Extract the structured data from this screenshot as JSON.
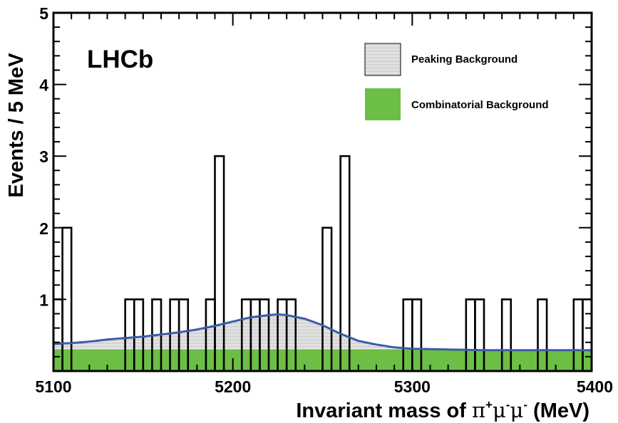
{
  "chart_data": {
    "type": "histogram",
    "brand": "LHCb",
    "xlabel_parts": [
      "Invariant mass of ",
      "π",
      "+",
      "μ",
      "-",
      "μ",
      "-",
      " (MeV)"
    ],
    "ylabel": "Events / 5 MeV",
    "xlim": [
      5100,
      5400
    ],
    "ylim": [
      0,
      5
    ],
    "x_ticks": [
      "5100",
      "5200",
      "5300",
      "5400"
    ],
    "x_tick_values": [
      5100,
      5200,
      5300,
      5400
    ],
    "y_ticks": [
      "1",
      "2",
      "3",
      "4",
      "5"
    ],
    "y_tick_values": [
      1,
      2,
      3,
      4,
      5
    ],
    "bin_width": 5,
    "data_histogram": {
      "bin_edges_start": [
        5100,
        5105,
        5140,
        5145,
        5150,
        5155,
        5160,
        5165,
        5170,
        5180,
        5185,
        5190,
        5200,
        5205,
        5210,
        5215,
        5220,
        5225,
        5230,
        5235,
        5250,
        5255,
        5260,
        5265,
        5295,
        5300,
        5305,
        5330,
        5335,
        5345,
        5350,
        5365,
        5370,
        5390,
        5395
      ],
      "counts": [
        1,
        2,
        1,
        1,
        0,
        1,
        0,
        1,
        1,
        0,
        1,
        3,
        0,
        1,
        1,
        1,
        0,
        1,
        1,
        0,
        2,
        0,
        3,
        0,
        1,
        1,
        0,
        1,
        1,
        0,
        1,
        0,
        1,
        1,
        1
      ]
    },
    "components": [
      {
        "name": "Peaking Background",
        "color": "#d9d9d9",
        "pattern": "horizontal-hatch",
        "x": [
          5100,
          5110,
          5120,
          5130,
          5140,
          5150,
          5160,
          5170,
          5180,
          5190,
          5200,
          5210,
          5220,
          5225,
          5230,
          5240,
          5250,
          5260,
          5270,
          5280,
          5290,
          5300,
          5320,
          5340,
          5360,
          5380,
          5400
        ],
        "y": [
          0.38,
          0.39,
          0.41,
          0.44,
          0.46,
          0.48,
          0.51,
          0.54,
          0.58,
          0.63,
          0.69,
          0.75,
          0.78,
          0.79,
          0.78,
          0.73,
          0.64,
          0.52,
          0.42,
          0.37,
          0.33,
          0.31,
          0.3,
          0.29,
          0.29,
          0.29,
          0.29
        ]
      },
      {
        "name": "Combinatorial Background",
        "color": "#6cbe45",
        "x": [
          5100,
          5400
        ],
        "y": [
          0.3,
          0.3
        ]
      }
    ],
    "fit_line_color": "#3a5ca8",
    "grid": false,
    "legend_position": "top-right"
  }
}
